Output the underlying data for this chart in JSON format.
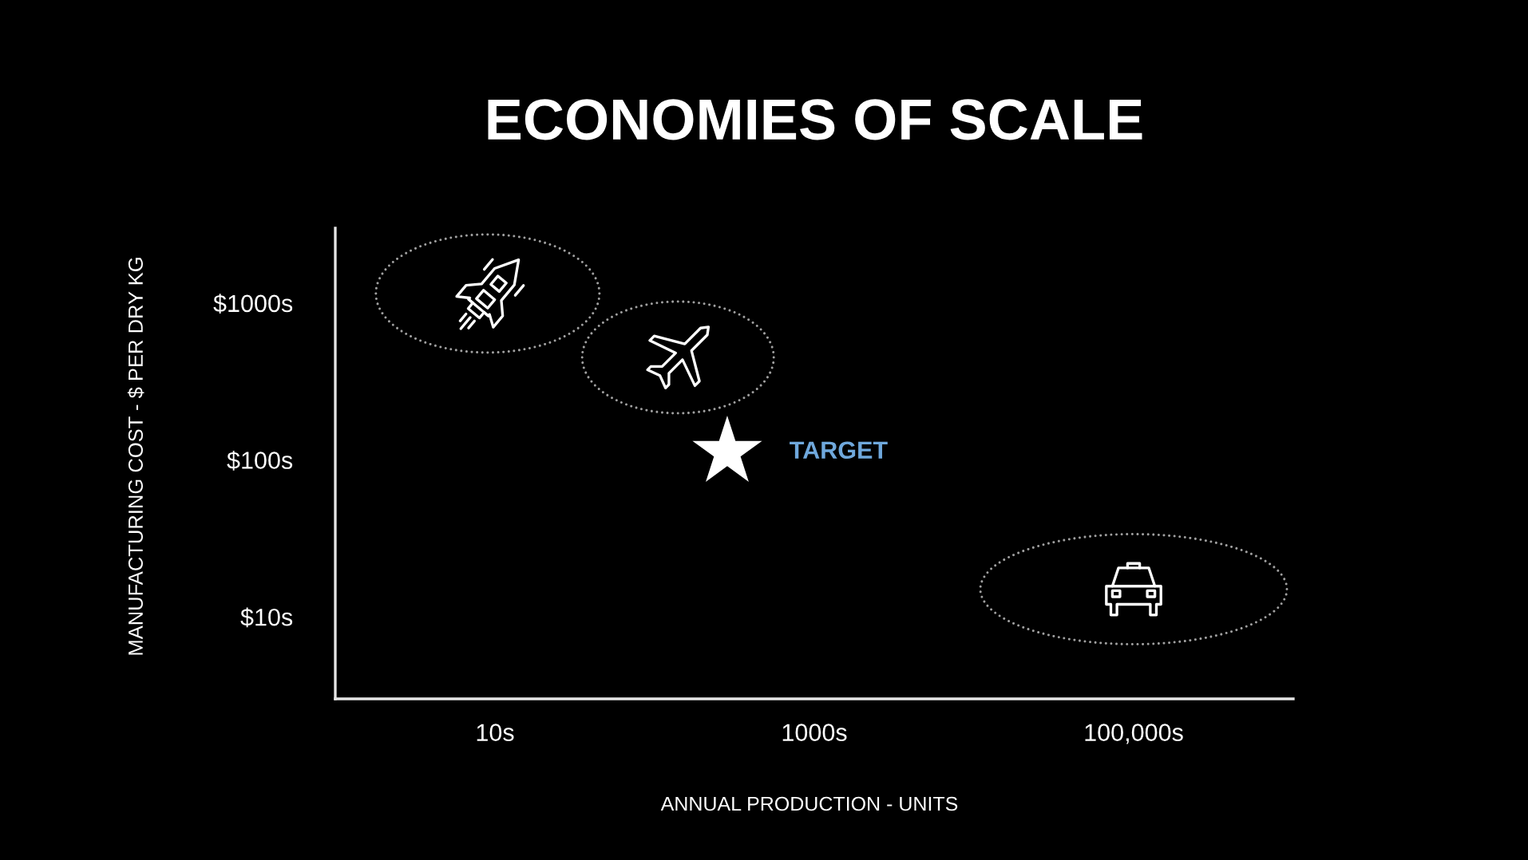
{
  "chart_data": {
    "type": "scatter",
    "title": "ECONOMIES OF SCALE",
    "xlabel": "ANNUAL PRODUCTION - UNITS",
    "ylabel": "MANUFACTURING COST - $ PER DRY KG",
    "series": [
      {
        "color": "#ffffff",
        "x": [
          9,
          140,
          100000
        ],
        "values": [
          1150,
          450,
          15
        ]
      },
      {
        "color": "#ffffff",
        "marker": "star",
        "x": [
          285
        ],
        "values": [
          112
        ]
      }
    ],
    "annotations": [
      {
        "text": "TARGET",
        "x": 285,
        "y": 112
      }
    ],
    "log": "xy",
    "xlim": [
      1,
      1000000
    ],
    "ylim": [
      3,
      3000
    ],
    "xticks": [
      {
        "value": 10,
        "label": "10s"
      },
      {
        "value": 1000,
        "label": "1000s"
      },
      {
        "value": 100000,
        "label": "100,000s"
      }
    ],
    "yticks": [
      {
        "value": 10,
        "label": "$10s"
      },
      {
        "value": 100,
        "label": "$100s"
      },
      {
        "value": 1000,
        "label": "$1000s"
      }
    ],
    "grid": false
  }
}
